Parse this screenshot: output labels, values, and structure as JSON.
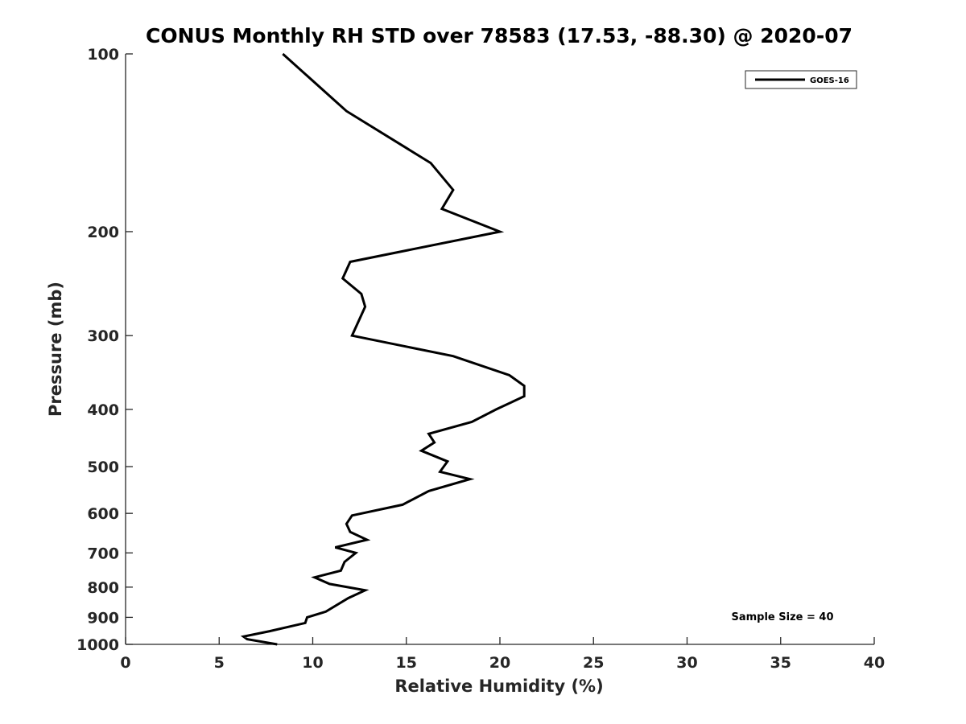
{
  "chart_data": {
    "type": "line",
    "title": "CONUS Monthly RH STD over 78583 (17.53, -88.30) @ 2020-07",
    "xlabel": "Relative Humidity (%)",
    "ylabel": "Pressure (mb)",
    "xlim": [
      0,
      40
    ],
    "ylim": [
      100,
      1000
    ],
    "yscale": "log",
    "y_reversed": true,
    "x_ticks": [
      0,
      5,
      10,
      15,
      20,
      25,
      30,
      35,
      40
    ],
    "y_ticks": [
      100,
      200,
      300,
      400,
      500,
      600,
      700,
      800,
      900,
      1000
    ],
    "legend": {
      "position": "top-right",
      "entries": [
        "GOES-16"
      ]
    },
    "annotation": "Sample Size = 40",
    "series": [
      {
        "name": "GOES-16",
        "color": "#000000",
        "points": [
          [
            8.4,
            100
          ],
          [
            11.8,
            125
          ],
          [
            16.3,
            153
          ],
          [
            17.5,
            170
          ],
          [
            16.9,
            183
          ],
          [
            20.0,
            200
          ],
          [
            12.0,
            225
          ],
          [
            11.6,
            240
          ],
          [
            12.6,
            255
          ],
          [
            12.8,
            268
          ],
          [
            12.1,
            300
          ],
          [
            17.5,
            325
          ],
          [
            20.5,
            350
          ],
          [
            21.3,
            365
          ],
          [
            21.3,
            380
          ],
          [
            19.8,
            400
          ],
          [
            18.5,
            420
          ],
          [
            16.2,
            440
          ],
          [
            16.5,
            455
          ],
          [
            15.8,
            470
          ],
          [
            17.2,
            490
          ],
          [
            16.8,
            510
          ],
          [
            18.4,
            525
          ],
          [
            16.2,
            550
          ],
          [
            14.8,
            580
          ],
          [
            12.1,
            605
          ],
          [
            11.8,
            625
          ],
          [
            12.0,
            645
          ],
          [
            12.9,
            665
          ],
          [
            11.2,
            685
          ],
          [
            12.3,
            700
          ],
          [
            11.7,
            725
          ],
          [
            11.5,
            750
          ],
          [
            10.1,
            770
          ],
          [
            10.9,
            790
          ],
          [
            12.8,
            810
          ],
          [
            11.9,
            835
          ],
          [
            10.7,
            880
          ],
          [
            9.7,
            900
          ],
          [
            9.6,
            920
          ],
          [
            7.7,
            950
          ],
          [
            6.3,
            970
          ],
          [
            6.5,
            980
          ],
          [
            8.1,
            1000
          ]
        ]
      }
    ]
  }
}
